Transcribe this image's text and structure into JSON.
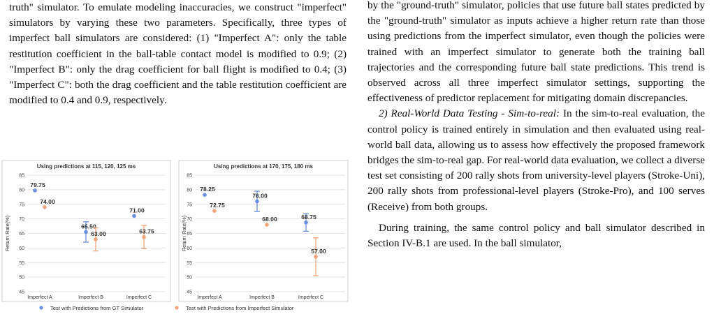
{
  "left_text": {
    "paragraph": "truth\" simulator. To emulate modeling inaccuracies, we construct \"imperfect\" simulators by varying these two parameters. Specifically, three types of imperfect ball simulators are considered: (1) \"Imperfect A\": only the table restitution coefficient in the ball-table contact model is modified to 0.9; (2) \"Imperfect B\": only the drag coefficient for ball flight is modified to 0.4; (3) \"Imperfect C\": both the drag coefficient and the table restitution coefficient are modified to 0.4 and 0.9, respectively."
  },
  "right_text": {
    "paragraph1": "by the \"ground-truth\" simulator, policies that use future ball states predicted by the \"ground-truth\" simulator as inputs achieve a higher return rate than those using predictions from the imperfect simulator, even though the policies were trained with an imperfect simulator to generate both the training ball trajectories and the corresponding future ball state predictions. This trend is observed across all three imperfect simulator settings, supporting the effectiveness of predictor replacement for mitigating domain discrepancies.",
    "section_title": "2) Real-World Data Testing - Sim-to-real:",
    "paragraph2": " In the sim-to-real evaluation, the control policy is trained entirely in simulation and then evaluated using real-world ball data, allowing us to assess how effectively the proposed framework bridges the sim-to-real gap. For real-world data evaluation, we collect a diverse test set consisting of 200 rally shots from university-level players (Stroke-Uni), 200 rally shots from professional-level players (Stroke-Pro), and 100 serves (Receive) from both groups.",
    "paragraph3": "During training, the same control policy and ball simulator described in Section IV-B.1 are used. In the ball simulator,"
  },
  "chart_data": [
    {
      "type": "scatter",
      "title": "Using predictions at 115, 120, 125 ms",
      "ylabel": "Return Rate(%)",
      "ylim": [
        45,
        85
      ],
      "yticks": [
        45,
        50,
        55,
        60,
        65,
        70,
        75,
        80,
        85
      ],
      "categories": [
        "Imperfect A",
        "Imperfect B",
        "Imperfect C"
      ],
      "series": [
        {
          "name": "Test with Predictions from GT Simulator",
          "values": [
            79.75,
            65.5,
            71.0
          ],
          "errors": [
            0,
            3.5,
            0
          ],
          "labels": [
            "79.75",
            "65.50",
            "71.00"
          ],
          "color": "#6a8fdc"
        },
        {
          "name": "Test with Predictions from Imperfect Simulator",
          "values": [
            74.0,
            63.0,
            63.75
          ],
          "errors": [
            0,
            4,
            4
          ],
          "labels": [
            "74.00",
            "63.00",
            "63.75"
          ],
          "color": "#f0a57c"
        }
      ]
    },
    {
      "type": "scatter",
      "title": "Using predictions at 170, 175, 180 ms",
      "ylabel": "Return Rate(%)",
      "ylim": [
        45,
        85
      ],
      "yticks": [
        45,
        50,
        55,
        60,
        65,
        70,
        75,
        80,
        85
      ],
      "categories": [
        "Imperfect A",
        "Imperfect B",
        "Imperfect C"
      ],
      "series": [
        {
          "name": "Test with Predictions from GT Simulator",
          "values": [
            78.25,
            76.0,
            68.75
          ],
          "errors": [
            0,
            3.5,
            3
          ],
          "labels": [
            "78.25",
            "76.00",
            "68.75"
          ],
          "color": "#6a8fdc"
        },
        {
          "name": "Test with Predictions from Imperfect Simulator",
          "values": [
            72.75,
            68.0,
            57.0
          ],
          "errors": [
            0,
            0,
            6.5
          ],
          "labels": [
            "72.75",
            "68.00",
            "57.00"
          ],
          "color": "#f0a57c"
        }
      ]
    }
  ],
  "legend": {
    "gt_label": "Test with Predictions from GT Simulator",
    "imperfect_label": "Test with Predictions from Imperfect Simulator",
    "gt_color": "#6a8fdc",
    "imperfect_color": "#f0a57c"
  }
}
